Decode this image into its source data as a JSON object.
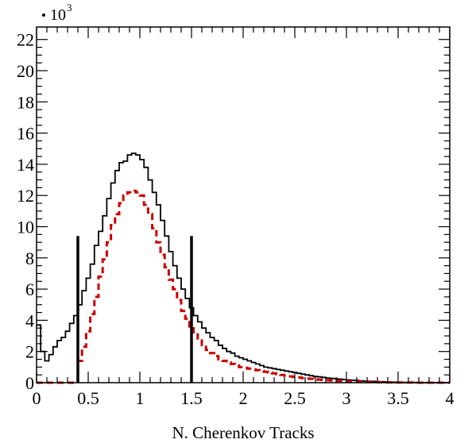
{
  "chart_data": {
    "type": "line",
    "title": "",
    "xlabel": "N. Cherenkov Tracks",
    "ylabel": "",
    "y_scale_label": "10",
    "y_scale_exponent": "3",
    "xlim": [
      0,
      4
    ],
    "ylim": [
      0,
      22.8
    ],
    "x_ticks": [
      0,
      0.5,
      1,
      1.5,
      2,
      2.5,
      3,
      3.5,
      4
    ],
    "x_tick_labels": [
      "0",
      "0.5",
      "1",
      "1.5",
      "2",
      "2.5",
      "3",
      "3.5",
      "4"
    ],
    "y_ticks": [
      0,
      2,
      4,
      6,
      8,
      10,
      12,
      14,
      16,
      18,
      20,
      22
    ],
    "y_tick_labels": [
      "0",
      "2",
      "4",
      "6",
      "8",
      "10",
      "12",
      "14",
      "16",
      "18",
      "20",
      "22"
    ],
    "grid": false,
    "series": [
      {
        "style": "solid",
        "color": "#000000",
        "bin_width": 0.04,
        "values": [
          3.7,
          2.0,
          1.4,
          1.8,
          2.3,
          2.7,
          2.9,
          3.3,
          3.8,
          4.3,
          5.0,
          5.9,
          6.7,
          7.6,
          8.8,
          9.7,
          10.7,
          11.8,
          12.8,
          13.6,
          14.1,
          14.2,
          14.6,
          14.7,
          14.6,
          14.3,
          13.8,
          13.0,
          12.2,
          11.4,
          10.4,
          9.4,
          8.4,
          7.5,
          6.7,
          6.0,
          5.4,
          4.8,
          4.3,
          3.9,
          3.5,
          3.2,
          2.9,
          2.7,
          2.4,
          2.2,
          2.0,
          1.9,
          1.7,
          1.6,
          1.5,
          1.4,
          1.3,
          1.2,
          1.1,
          1.0,
          0.95,
          0.9,
          0.85,
          0.8,
          0.75,
          0.7,
          0.65,
          0.6,
          0.55,
          0.5,
          0.45,
          0.4,
          0.37,
          0.34,
          0.3,
          0.27,
          0.25,
          0.23,
          0.2,
          0.18,
          0.16,
          0.14,
          0.12,
          0.1,
          0.09,
          0.08,
          0.07,
          0.06,
          0.05,
          0.04,
          0.03,
          0.02,
          0.02,
          0.01,
          0.01,
          0.01,
          0.01,
          0.0,
          0.0,
          0.0,
          0.0,
          0.0,
          0.0,
          0.0
        ]
      },
      {
        "style": "dashed",
        "color": "#cc0000",
        "bin_width": 0.04,
        "values": [
          0.0,
          0.0,
          0.0,
          0.0,
          0.0,
          0.0,
          0.0,
          0.0,
          0.0,
          0.0,
          1.4,
          2.3,
          3.3,
          4.4,
          5.5,
          6.8,
          7.9,
          9.0,
          10.1,
          10.8,
          11.5,
          12.0,
          12.2,
          12.3,
          12.2,
          12.0,
          11.4,
          10.8,
          9.9,
          9.0,
          8.2,
          7.4,
          6.6,
          6.0,
          5.3,
          4.6,
          4.1,
          3.6,
          3.1,
          2.7,
          2.4,
          2.1,
          1.9,
          1.7,
          1.5,
          1.4,
          1.3,
          1.2,
          1.1,
          1.0,
          0.95,
          0.9,
          0.85,
          0.8,
          0.75,
          0.7,
          0.65,
          0.6,
          0.55,
          0.5,
          0.45,
          0.4,
          0.37,
          0.34,
          0.3,
          0.27,
          0.25,
          0.22,
          0.2,
          0.18,
          0.16,
          0.14,
          0.12,
          0.11,
          0.1,
          0.09,
          0.08,
          0.07,
          0.06,
          0.05,
          0.04,
          0.04,
          0.03,
          0.03,
          0.02,
          0.02,
          0.02,
          0.01,
          0.01,
          0.01,
          0.01,
          0.0,
          0.0,
          0.0,
          0.0,
          0.0,
          0.0,
          0.0,
          0.0,
          0.0
        ]
      }
    ],
    "cut_lines": [
      {
        "x": 0.4,
        "y_top": 9.4
      },
      {
        "x": 1.5,
        "y_top": 9.4
      }
    ]
  }
}
